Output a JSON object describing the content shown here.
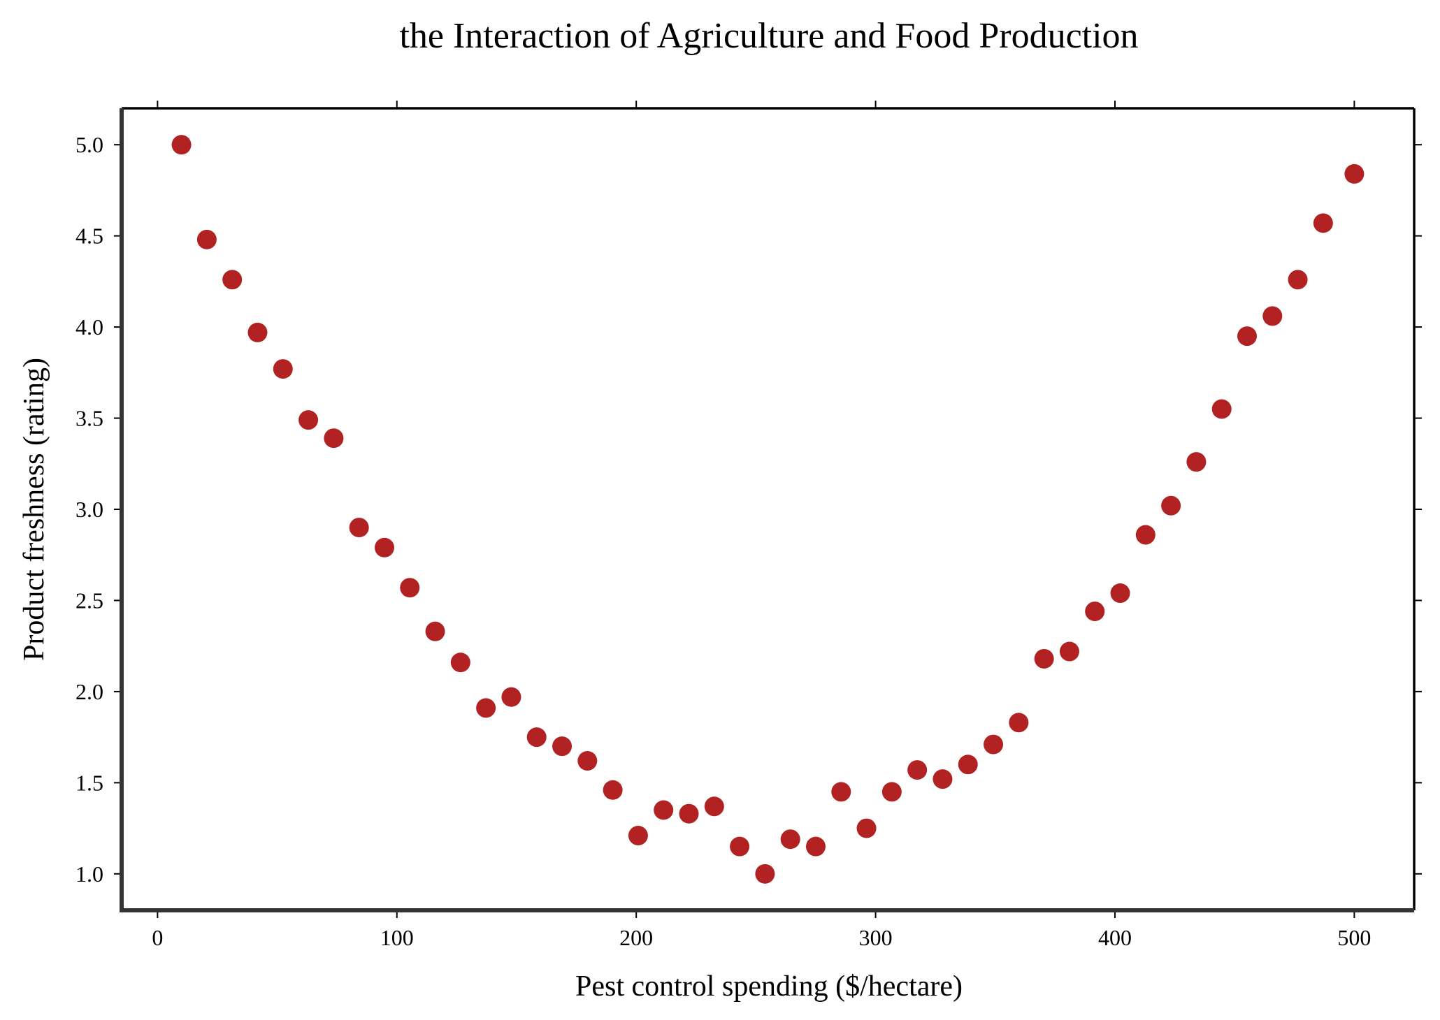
{
  "chart_data": {
    "type": "scatter",
    "title": "the Interaction of Agriculture and Food Production",
    "xlabel": "Pest control spending ($/hectare)",
    "ylabel": "Product freshness (rating)",
    "xlim": [
      -15,
      525
    ],
    "ylim": [
      0.8,
      5.2
    ],
    "xticks": [
      0,
      100,
      200,
      300,
      400,
      500
    ],
    "xtick_labels": [
      "0",
      "100",
      "200",
      "300",
      "400",
      "500"
    ],
    "yticks": [
      1.0,
      1.5,
      2.0,
      2.5,
      3.0,
      3.5,
      4.0,
      4.5,
      5.0
    ],
    "ytick_labels": [
      "1.0",
      "1.5",
      "2.0",
      "2.5",
      "3.0",
      "3.5",
      "4.0",
      "4.5",
      "5.0"
    ],
    "grid": false,
    "marker_color": "#b22222",
    "series": [
      {
        "x": [
          10,
          20.6,
          31.2,
          41.8,
          52.4,
          63,
          73.6,
          84.2,
          94.8,
          105.4,
          116,
          126.6,
          137.2,
          147.8,
          158.4,
          169,
          179.6,
          190.2,
          200.8,
          211.4,
          222,
          232.6,
          243.2,
          253.8,
          264.4,
          275,
          285.6,
          296.2,
          306.8,
          317.4,
          328,
          338.6,
          349.2,
          359.8,
          370.4,
          381,
          391.6,
          402.2,
          412.8,
          423.4,
          434,
          444.6,
          455.2,
          465.8,
          476.4,
          487,
          500
        ],
        "y": [
          5.0,
          4.48,
          4.26,
          3.97,
          3.77,
          3.49,
          3.39,
          2.9,
          2.79,
          2.57,
          2.33,
          2.16,
          1.91,
          1.97,
          1.75,
          1.7,
          1.62,
          1.46,
          1.21,
          1.35,
          1.33,
          1.37,
          1.15,
          1.0,
          1.19,
          1.15,
          1.45,
          1.25,
          1.45,
          1.57,
          1.52,
          1.6,
          1.71,
          1.83,
          2.18,
          2.22,
          2.44,
          2.54,
          2.86,
          3.02,
          3.26,
          3.55,
          3.95,
          4.06,
          4.26,
          4.57,
          4.84
        ]
      }
    ]
  }
}
